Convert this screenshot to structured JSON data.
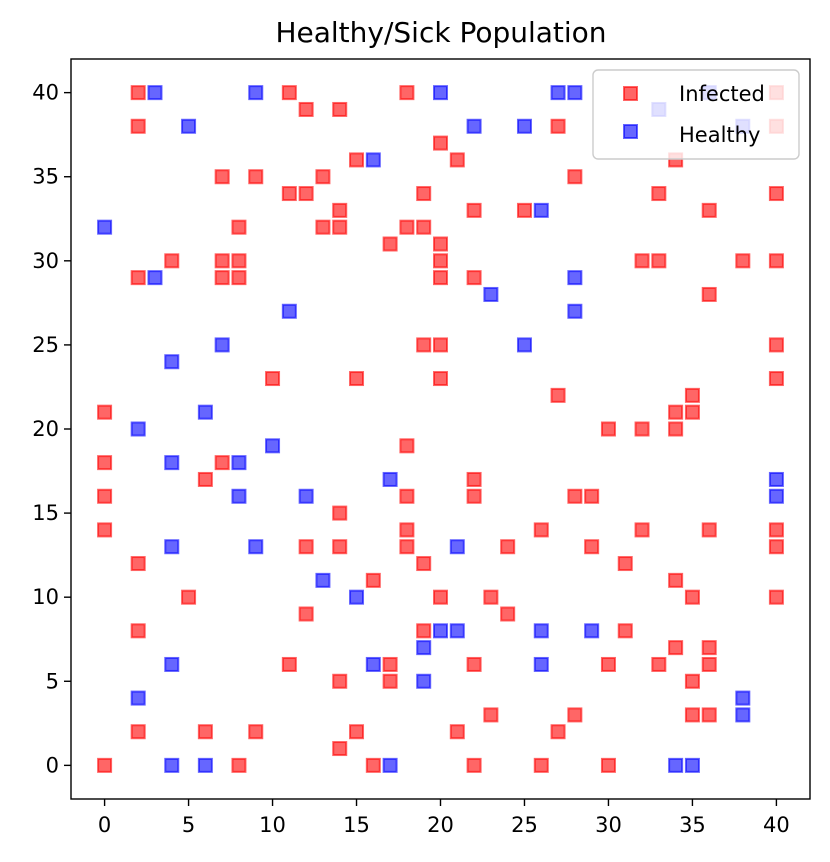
{
  "chart_data": {
    "type": "scatter",
    "title": "Healthy/Sick Population",
    "xlabel": "",
    "ylabel": "",
    "xlim": [
      -2,
      42
    ],
    "ylim": [
      -2,
      42
    ],
    "xticks": [
      "0",
      "5",
      "10",
      "15",
      "20",
      "25",
      "30",
      "35",
      "40"
    ],
    "yticks": [
      "0",
      "5",
      "10",
      "15",
      "20",
      "25",
      "30",
      "35",
      "40"
    ],
    "grid": false,
    "legend_position": "top-right",
    "series": [
      {
        "name": "Infected",
        "color": "#ff0000",
        "points": [
          [
            2,
            40
          ],
          [
            11,
            40
          ],
          [
            18,
            40
          ],
          [
            12,
            39
          ],
          [
            14,
            39
          ],
          [
            40,
            40
          ],
          [
            2,
            38
          ],
          [
            27,
            38
          ],
          [
            40,
            38
          ],
          [
            20,
            37
          ],
          [
            15,
            36
          ],
          [
            21,
            36
          ],
          [
            34,
            36
          ],
          [
            7,
            35
          ],
          [
            9,
            35
          ],
          [
            13,
            35
          ],
          [
            28,
            35
          ],
          [
            11,
            34
          ],
          [
            12,
            34
          ],
          [
            19,
            34
          ],
          [
            33,
            34
          ],
          [
            40,
            34
          ],
          [
            14,
            33
          ],
          [
            22,
            33
          ],
          [
            25,
            33
          ],
          [
            36,
            33
          ],
          [
            8,
            32
          ],
          [
            13,
            32
          ],
          [
            14,
            32
          ],
          [
            18,
            32
          ],
          [
            19,
            32
          ],
          [
            17,
            31
          ],
          [
            20,
            31
          ],
          [
            4,
            30
          ],
          [
            7,
            30
          ],
          [
            8,
            30
          ],
          [
            20,
            30
          ],
          [
            32,
            30
          ],
          [
            33,
            30
          ],
          [
            38,
            30
          ],
          [
            40,
            30
          ],
          [
            2,
            29
          ],
          [
            7,
            29
          ],
          [
            8,
            29
          ],
          [
            20,
            29
          ],
          [
            22,
            29
          ],
          [
            36,
            28
          ],
          [
            19,
            25
          ],
          [
            20,
            25
          ],
          [
            40,
            25
          ],
          [
            10,
            23
          ],
          [
            15,
            23
          ],
          [
            20,
            23
          ],
          [
            40,
            23
          ],
          [
            27,
            22
          ],
          [
            35,
            22
          ],
          [
            0,
            21
          ],
          [
            34,
            21
          ],
          [
            35,
            21
          ],
          [
            30,
            20
          ],
          [
            32,
            20
          ],
          [
            34,
            20
          ],
          [
            18,
            19
          ],
          [
            0,
            18
          ],
          [
            7,
            18
          ],
          [
            6,
            17
          ],
          [
            22,
            17
          ],
          [
            0,
            16
          ],
          [
            18,
            16
          ],
          [
            22,
            16
          ],
          [
            28,
            16
          ],
          [
            29,
            16
          ],
          [
            14,
            15
          ],
          [
            0,
            14
          ],
          [
            18,
            14
          ],
          [
            26,
            14
          ],
          [
            32,
            14
          ],
          [
            36,
            14
          ],
          [
            40,
            14
          ],
          [
            12,
            13
          ],
          [
            14,
            13
          ],
          [
            18,
            13
          ],
          [
            24,
            13
          ],
          [
            29,
            13
          ],
          [
            40,
            13
          ],
          [
            2,
            12
          ],
          [
            19,
            12
          ],
          [
            31,
            12
          ],
          [
            16,
            11
          ],
          [
            34,
            11
          ],
          [
            5,
            10
          ],
          [
            20,
            10
          ],
          [
            23,
            10
          ],
          [
            35,
            10
          ],
          [
            40,
            10
          ],
          [
            12,
            9
          ],
          [
            24,
            9
          ],
          [
            2,
            8
          ],
          [
            19,
            8
          ],
          [
            31,
            8
          ],
          [
            34,
            7
          ],
          [
            36,
            7
          ],
          [
            11,
            6
          ],
          [
            17,
            6
          ],
          [
            22,
            6
          ],
          [
            30,
            6
          ],
          [
            33,
            6
          ],
          [
            36,
            6
          ],
          [
            14,
            5
          ],
          [
            17,
            5
          ],
          [
            35,
            5
          ],
          [
            23,
            3
          ],
          [
            28,
            3
          ],
          [
            35,
            3
          ],
          [
            36,
            3
          ],
          [
            2,
            2
          ],
          [
            6,
            2
          ],
          [
            9,
            2
          ],
          [
            15,
            2
          ],
          [
            21,
            2
          ],
          [
            27,
            2
          ],
          [
            14,
            1
          ],
          [
            0,
            0
          ],
          [
            8,
            0
          ],
          [
            16,
            0
          ],
          [
            22,
            0
          ],
          [
            26,
            0
          ],
          [
            30,
            0
          ]
        ]
      },
      {
        "name": "Healthy",
        "color": "#0000ff",
        "points": [
          [
            3,
            40
          ],
          [
            9,
            40
          ],
          [
            20,
            40
          ],
          [
            27,
            40
          ],
          [
            28,
            40
          ],
          [
            36,
            40
          ],
          [
            5,
            38
          ],
          [
            22,
            38
          ],
          [
            25,
            38
          ],
          [
            38,
            38
          ],
          [
            33,
            39
          ],
          [
            16,
            36
          ],
          [
            26,
            33
          ],
          [
            0,
            32
          ],
          [
            3,
            29
          ],
          [
            28,
            29
          ],
          [
            23,
            28
          ],
          [
            11,
            27
          ],
          [
            28,
            27
          ],
          [
            7,
            25
          ],
          [
            25,
            25
          ],
          [
            4,
            24
          ],
          [
            6,
            21
          ],
          [
            2,
            20
          ],
          [
            10,
            19
          ],
          [
            4,
            18
          ],
          [
            8,
            18
          ],
          [
            17,
            17
          ],
          [
            40,
            17
          ],
          [
            8,
            16
          ],
          [
            12,
            16
          ],
          [
            40,
            16
          ],
          [
            4,
            13
          ],
          [
            9,
            13
          ],
          [
            21,
            13
          ],
          [
            13,
            11
          ],
          [
            15,
            10
          ],
          [
            20,
            8
          ],
          [
            21,
            8
          ],
          [
            26,
            8
          ],
          [
            29,
            8
          ],
          [
            19,
            7
          ],
          [
            4,
            6
          ],
          [
            16,
            6
          ],
          [
            26,
            6
          ],
          [
            19,
            5
          ],
          [
            2,
            4
          ],
          [
            38,
            4
          ],
          [
            38,
            3
          ],
          [
            4,
            0
          ],
          [
            6,
            0
          ],
          [
            17,
            0
          ],
          [
            34,
            0
          ],
          [
            35,
            0
          ]
        ]
      }
    ]
  }
}
